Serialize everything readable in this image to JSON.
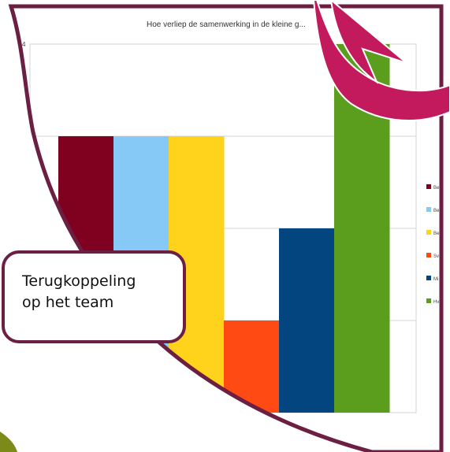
{
  "chart_data": {
    "type": "bar",
    "title": "Hoe verliep de samenwerking in de kleine g...",
    "ylim": [
      0,
      4
    ],
    "y_ticks": [
      {
        "value": 4,
        "label": "4"
      },
      {
        "value": 3,
        "label": ""
      },
      {
        "value": 2,
        "label": ""
      },
      {
        "value": 1,
        "label": ""
      },
      {
        "value": 0,
        "label": ""
      }
    ],
    "grid": true,
    "legend_position": "right",
    "series": [
      {
        "label": "Be",
        "value": 3,
        "color": "#800020"
      },
      {
        "label": "Be",
        "value": 3,
        "color": "#86c9f7"
      },
      {
        "label": "Be",
        "value": 3,
        "color": "#ffd21c"
      },
      {
        "label": "Sv",
        "value": 1,
        "color": "#ff4a14"
      },
      {
        "label": "Mi",
        "value": 2,
        "color": "#03457f"
      },
      {
        "label": "Hv",
        "value": 4,
        "color": "#5b9e1e"
      }
    ]
  },
  "callout": {
    "line1": "Terugkoppeling",
    "line2": "op het team"
  },
  "colors": {
    "frame": "#6b1f42",
    "arrow": "#c21a5c",
    "accent_leaf": "#7c8a1a"
  }
}
